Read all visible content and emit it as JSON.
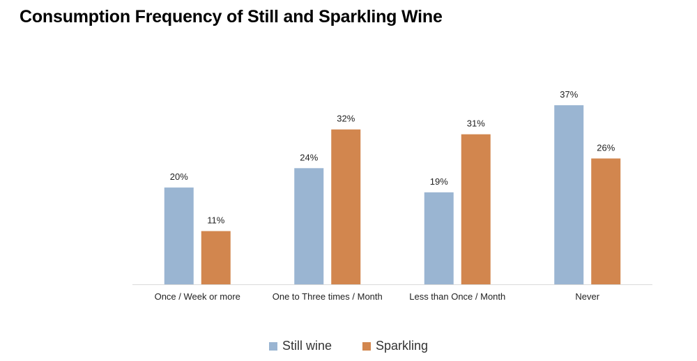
{
  "colors": {
    "still": "#9ab5d2",
    "sparkling": "#d2864e",
    "axis": "#d9d9d9",
    "label": "#222222"
  },
  "chart_data": {
    "type": "bar",
    "title": "Consumption Frequency of Still and Sparkling Wine",
    "categories": [
      "Once / Week or more",
      "One to Three times / Month",
      "Less than Once / Month",
      "Never"
    ],
    "series": [
      {
        "name": "Still wine",
        "values": [
          20,
          24,
          19,
          37
        ],
        "labels": [
          "20%",
          "24%",
          "19%",
          "37%"
        ]
      },
      {
        "name": "Sparkling",
        "values": [
          11,
          32,
          31,
          26
        ],
        "labels": [
          "11%",
          "32%",
          "31%",
          "26%"
        ]
      }
    ],
    "value_unit": "%",
    "ylim": [
      0,
      37
    ],
    "grid": false,
    "legend": "bottom"
  }
}
